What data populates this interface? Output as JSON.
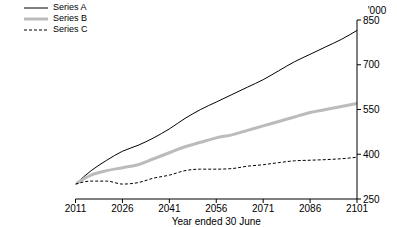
{
  "chart_data": {
    "type": "line",
    "x_label": "Year ended 30 June",
    "y_label": "'000",
    "x": [
      2011,
      2016,
      2021,
      2026,
      2031,
      2036,
      2041,
      2046,
      2051,
      2056,
      2061,
      2066,
      2071,
      2076,
      2081,
      2086,
      2091,
      2096,
      2101
    ],
    "series": [
      {
        "name": "Series A",
        "color": "#000000",
        "line_style": "solid",
        "values": [
          300,
          345,
          380,
          410,
          430,
          455,
          485,
          520,
          550,
          575,
          600,
          625,
          650,
          680,
          710,
          735,
          760,
          785,
          815
        ]
      },
      {
        "name": "Series B",
        "color": "#bbbbbb",
        "line_style": "solid",
        "values": [
          300,
          330,
          345,
          355,
          365,
          385,
          405,
          425,
          440,
          455,
          465,
          480,
          495,
          510,
          525,
          540,
          550,
          560,
          570
        ]
      },
      {
        "name": "Series C",
        "color": "#000000",
        "line_style": "dashed",
        "values": [
          300,
          310,
          310,
          300,
          305,
          320,
          330,
          345,
          350,
          350,
          352,
          360,
          365,
          372,
          378,
          380,
          382,
          385,
          390
        ]
      }
    ],
    "xlim": [
      2011,
      2101
    ],
    "xticks": [
      2011,
      2026,
      2041,
      2056,
      2071,
      2086,
      2101
    ],
    "ylim": [
      250,
      850
    ],
    "yticks": [
      250,
      400,
      550,
      700,
      850
    ],
    "grid": false,
    "legend": "top-left"
  }
}
